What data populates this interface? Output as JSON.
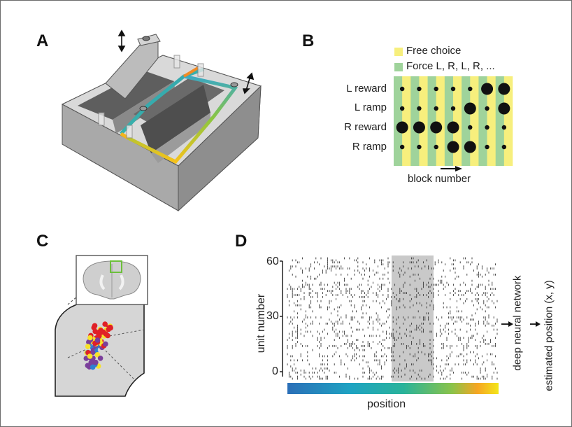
{
  "panels": {
    "a": {
      "letter": "A"
    },
    "b": {
      "letter": "B",
      "legend": [
        {
          "label": "Free choice",
          "color": "#f7ef7d"
        },
        {
          "label": "Force L, R, L, R, ...",
          "color": "#9fd39b"
        }
      ],
      "rows": [
        "L reward",
        "L ramp",
        "R reward",
        "R ramp"
      ],
      "dot_sizes": [
        [
          1,
          1,
          1,
          1,
          1,
          3,
          3
        ],
        [
          1,
          1,
          1,
          1,
          3,
          1,
          3
        ],
        [
          3,
          3,
          3,
          3,
          1,
          1,
          1
        ],
        [
          1,
          1,
          1,
          3,
          3,
          1,
          1
        ]
      ],
      "xlabel": "block number"
    },
    "c": {
      "letter": "C",
      "dot_colors": [
        "#e02027",
        "#2f7fd0",
        "#f7e22a",
        "#7a3f9b"
      ]
    },
    "d": {
      "letter": "D",
      "ylabel": "unit number",
      "yticks": [
        "60",
        "30",
        "0"
      ],
      "xlabel": "position",
      "nn_label": "deep neural network",
      "output_label": "estimated position (x, y)"
    }
  }
}
